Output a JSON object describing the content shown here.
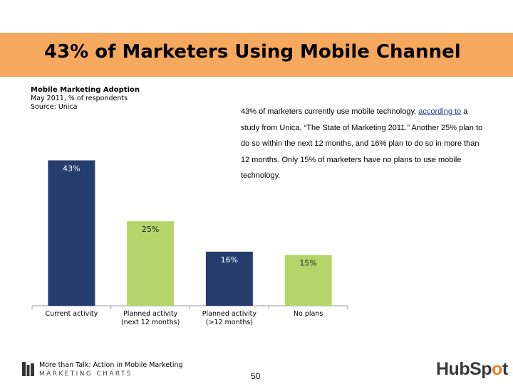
{
  "slide": {
    "title": "43% of Marketers Using Mobile Channel",
    "banner_color": "#f6a85e"
  },
  "chart_data": {
    "type": "bar",
    "title": "Mobile Marketing Adoption",
    "subtitle": "May 2011, % of respondents",
    "source": "Source: Unica",
    "categories": [
      "Current activity",
      "Planned activity (next 12 months)",
      "Planned activity (>12 months)",
      "No plans"
    ],
    "category_lines": [
      [
        "Current activity"
      ],
      [
        "Planned activity",
        "(next 12 months)"
      ],
      [
        "Planned activity",
        "(>12 months)"
      ],
      [
        "No plans"
      ]
    ],
    "values": [
      43,
      25,
      16,
      15
    ],
    "data_labels": [
      "43%",
      "25%",
      "16%",
      "15%"
    ],
    "colors": [
      "#263e6e",
      "#b5d56a",
      "#263e6e",
      "#b5d56a"
    ],
    "ylim": [
      0,
      45
    ],
    "grid": false,
    "legend": "none"
  },
  "blurb": {
    "before_link": "43% of marketers currently use mobile technology, ",
    "link": "according to",
    "after_link": " a study from Unica, “The State of Marketing 2011.” Another 25% plan to do so within the next 12 months, and 16% plan to do so in more than 12 months. Only 15% of marketers have no plans to use mobile technology."
  },
  "footer": {
    "caption": "More than Talk: Action in Mobile Marketing",
    "brand": "MARKETING CHARTS",
    "page_number": "50",
    "logo_prefix": "HubSp",
    "logo_accent": "o",
    "logo_suffix": "t"
  }
}
